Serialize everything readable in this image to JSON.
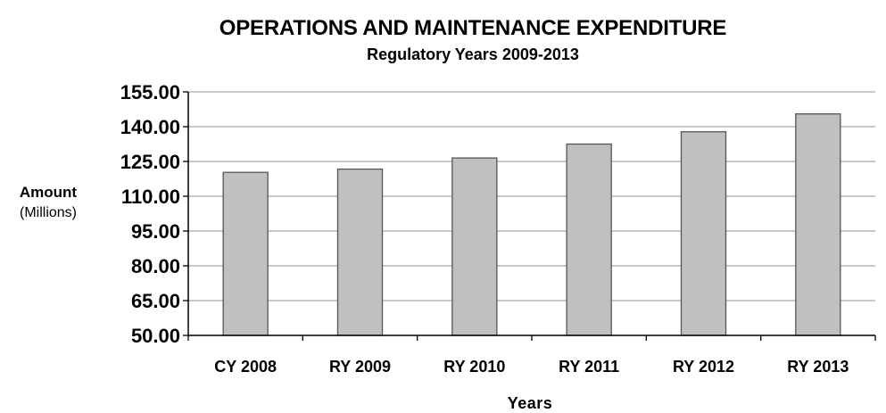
{
  "chart_data": {
    "type": "bar",
    "title": "OPERATIONS AND MAINTENANCE EXPENDITURE",
    "subtitle": "Regulatory Years 2009-2013",
    "ylabel": "Amount",
    "yunit": "(Millions)",
    "xlabel": "Years",
    "categories": [
      "CY 2008",
      "RY 2009",
      "RY 2010",
      "RY 2011",
      "RY 2012",
      "RY 2013"
    ],
    "values": [
      120.3,
      121.7,
      126.5,
      132.5,
      137.8,
      145.5
    ],
    "ylim": [
      50,
      155
    ],
    "yticks": [
      "50.00",
      "65.00",
      "80.00",
      "95.00",
      "110.00",
      "125.00",
      "140.00",
      "155.00"
    ],
    "grid": true,
    "legend": "none",
    "colors": {
      "bar_fill": "#c0c0c0",
      "bar_stroke": "#555555",
      "grid": "#a6a6a6",
      "axis": "#000000"
    }
  }
}
